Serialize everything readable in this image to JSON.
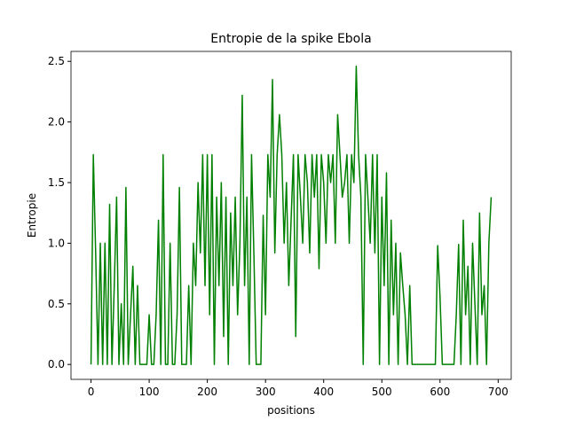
{
  "chart_data": {
    "type": "line",
    "title": "Entropie de la spike Ebola",
    "x_label": "positions",
    "y_label": "Entropie",
    "color": "#008000",
    "grid": false,
    "x": [
      0,
      4,
      8,
      12,
      16,
      20,
      24,
      28,
      32,
      36,
      40,
      44,
      48,
      52,
      56,
      60,
      64,
      68,
      72,
      76,
      80,
      84,
      88,
      92,
      96,
      100,
      104,
      108,
      112,
      116,
      120,
      124,
      128,
      132,
      136,
      140,
      144,
      148,
      152,
      156,
      160,
      164,
      168,
      172,
      176,
      180,
      184,
      188,
      192,
      196,
      200,
      204,
      208,
      212,
      216,
      220,
      224,
      228,
      232,
      236,
      240,
      244,
      248,
      252,
      256,
      260,
      264,
      268,
      272,
      276,
      280,
      284,
      288,
      292,
      296,
      300,
      304,
      308,
      312,
      316,
      320,
      324,
      328,
      332,
      336,
      340,
      344,
      348,
      352,
      356,
      360,
      364,
      368,
      372,
      376,
      380,
      384,
      388,
      392,
      396,
      400,
      404,
      408,
      412,
      416,
      420,
      424,
      428,
      432,
      436,
      440,
      444,
      448,
      452,
      456,
      460,
      464,
      468,
      472,
      476,
      480,
      484,
      488,
      492,
      496,
      500,
      504,
      508,
      512,
      516,
      520,
      524,
      528,
      532,
      536,
      540,
      544,
      548,
      552,
      556,
      560,
      564,
      568,
      572,
      576,
      580,
      584,
      588,
      592,
      596,
      600,
      604,
      608,
      612,
      616,
      620,
      624,
      628,
      632,
      636,
      640,
      644,
      648,
      652,
      656,
      660,
      664,
      668,
      672,
      676,
      680,
      684,
      688
    ],
    "values": [
      0,
      1.73,
      0.92,
      0,
      1.0,
      0,
      1.0,
      0,
      1.32,
      0,
      0.65,
      1.38,
      0,
      0.5,
      0,
      1.46,
      0,
      0.41,
      0.81,
      0,
      0.65,
      0,
      0,
      0,
      0,
      0.41,
      0,
      0,
      0.41,
      1.19,
      0,
      1.73,
      0,
      0,
      1.0,
      0,
      0,
      0.41,
      1.46,
      0,
      0,
      0,
      0.65,
      0,
      1.0,
      0.65,
      1.5,
      0.92,
      1.73,
      0.65,
      1.73,
      0.41,
      1.73,
      0,
      1.38,
      0.65,
      1.5,
      0.23,
      1.38,
      0,
      1.25,
      0.65,
      1.38,
      0.41,
      1.0,
      2.22,
      0.65,
      1.38,
      0,
      1.73,
      0.92,
      0,
      0,
      0,
      1.23,
      0.41,
      1.73,
      1.38,
      2.35,
      0.92,
      1.73,
      2.06,
      1.73,
      1.0,
      1.5,
      0.65,
      1.19,
      1.73,
      0.23,
      1.73,
      1.38,
      1.0,
      1.73,
      1.5,
      0.92,
      1.73,
      1.38,
      1.73,
      0.79,
      1.73,
      1.5,
      1.0,
      1.73,
      1.5,
      1.73,
      1.0,
      2.06,
      1.73,
      1.38,
      1.5,
      1.73,
      1.0,
      1.73,
      1.5,
      2.46,
      1.73,
      1.38,
      0,
      1.73,
      1.38,
      1.0,
      1.73,
      0.92,
      1.73,
      0,
      1.38,
      0.65,
      1.58,
      0,
      1.19,
      0.41,
      1.0,
      0,
      0.92,
      0.65,
      0.41,
      0,
      0.65,
      0,
      0,
      0,
      0,
      0,
      0,
      0,
      0,
      0,
      0,
      0,
      0.98,
      0.56,
      0,
      0,
      0,
      0,
      0,
      0,
      0.41,
      0.99,
      0,
      1.19,
      0.41,
      0.81,
      0,
      1.0,
      0.5,
      0,
      1.25,
      0.41,
      0.65,
      0,
      1.0,
      1.38
    ],
    "xlim": [
      -34.4,
      722.4
    ],
    "ylim": [
      -0.123,
      2.582
    ],
    "xticks": [
      0,
      100,
      200,
      300,
      400,
      500,
      600,
      700
    ],
    "yticks": [
      {
        "value": 0,
        "label": "0.0"
      },
      0.5,
      {
        "value": 1,
        "label": "1.0"
      },
      1.5,
      {
        "value": 2,
        "label": "2.0"
      },
      2.5
    ]
  }
}
